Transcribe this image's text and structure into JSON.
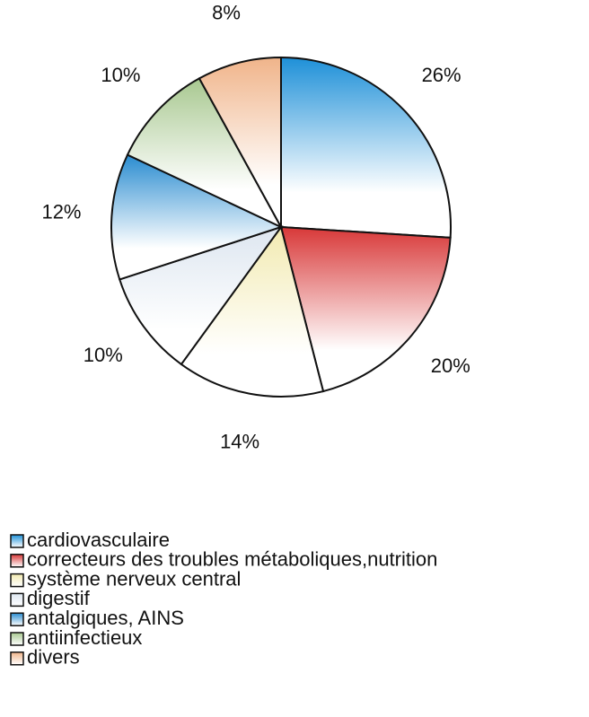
{
  "chart_data": {
    "type": "pie",
    "categories": [
      "cardiovasculaire",
      "correcteurs des troubles métaboliques,nutrition",
      "système nerveux central",
      "digestif",
      "antalgiques, AINS",
      "antiinfectieux",
      "divers"
    ],
    "values": [
      26,
      20,
      14,
      10,
      12,
      10,
      8
    ],
    "value_labels": [
      "26%",
      "20%",
      "14%",
      "10%",
      "12%",
      "10%",
      "8%"
    ],
    "colors": [
      "#1e90d8",
      "#d83838",
      "#f2eab0",
      "#dde6f0",
      "#2a8cd0",
      "#a8c890",
      "#f0b48a"
    ],
    "legend": "bottom-left"
  }
}
